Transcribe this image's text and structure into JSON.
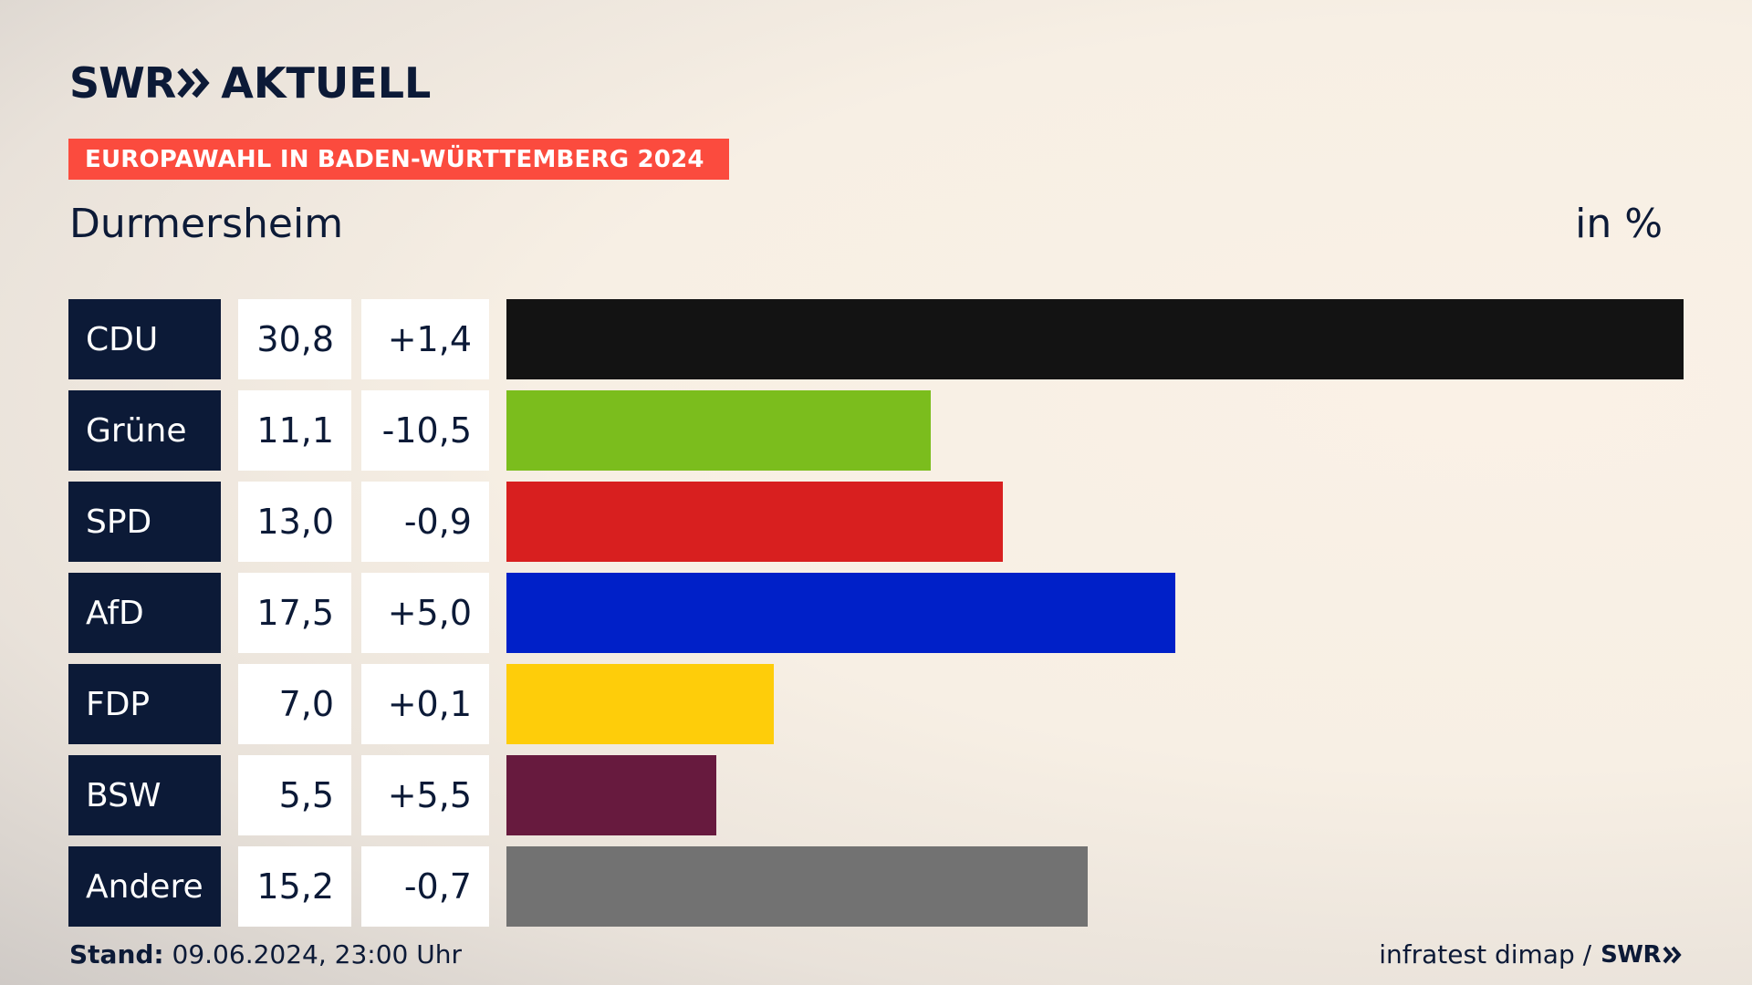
{
  "brand": {
    "swr": "SWR",
    "aktuell": "AKTUELL"
  },
  "header": {
    "tag": "EUROPAWAHL IN BADEN-WÜRTTEMBERG 2024",
    "place": "Durmersheim",
    "unit": "in %"
  },
  "colors": {
    "accent": "#fb4b3e",
    "navy": "#0c1a37"
  },
  "chart_data": {
    "type": "bar",
    "orientation": "horizontal",
    "categories": [
      "CDU",
      "Grüne",
      "SPD",
      "AfD",
      "FDP",
      "BSW",
      "Andere"
    ],
    "values": [
      30.8,
      11.1,
      13.0,
      17.5,
      7.0,
      5.5,
      15.2
    ],
    "value_labels": [
      "30,8",
      "11,1",
      "13,0",
      "17,5",
      "7,0",
      "5,5",
      "15,2"
    ],
    "diff_labels": [
      "+1,4",
      "-10,5",
      "-0,9",
      "+5,0",
      "+0,1",
      "+5,5",
      "-0,7"
    ],
    "colors": [
      "#131313",
      "#7bbd1d",
      "#d81f1f",
      "#0020c8",
      "#fecd0a",
      "#671a3e",
      "#727272"
    ],
    "xlim": [
      0,
      30.8
    ]
  },
  "footer": {
    "stand_label": "Stand:",
    "stand_value": "09.06.2024, 23:00 Uhr",
    "source": "infratest dimap /",
    "source_brand": "SWR"
  }
}
